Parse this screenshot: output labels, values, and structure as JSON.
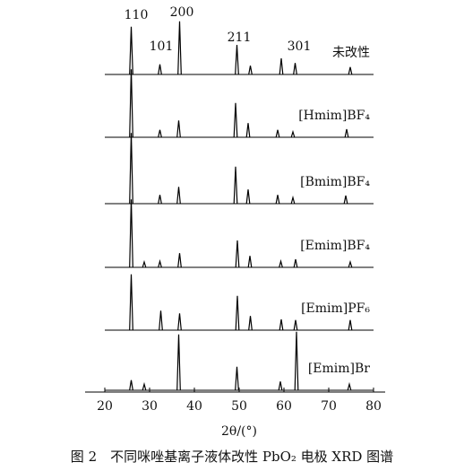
{
  "chart_data": {
    "type": "line",
    "xlabel": "2θ/(°)",
    "caption": "图 2　不同咪唑基离子液体改性 PbO₂ 电极 XRD 图谱",
    "xlim": [
      20,
      80
    ],
    "xticks": [
      20,
      30,
      40,
      50,
      60,
      70,
      80
    ],
    "annotations": [
      "110",
      "101",
      "200",
      "211",
      "301"
    ],
    "series": [
      {
        "name": "未改性",
        "color": "#000000",
        "x": [
          25.9,
          32.3,
          36.7,
          49.5,
          52.5,
          59.4,
          62.5,
          74.8
        ],
        "values": [
          71,
          15,
          79,
          44,
          13,
          24,
          17,
          11
        ]
      },
      {
        "name": "[Hmim]BF₄",
        "color": "#000000",
        "x": [
          25.9,
          32.3,
          36.5,
          49.2,
          52.0,
          58.6,
          62.0,
          74.0
        ],
        "values": [
          101,
          11,
          25,
          51,
          21,
          11,
          8,
          12
        ]
      },
      {
        "name": "[Bmim]BF₄",
        "color": "#000000",
        "x": [
          25.9,
          32.3,
          36.5,
          49.2,
          52.0,
          58.6,
          62.0,
          73.8
        ],
        "values": [
          105,
          13,
          25,
          55,
          21,
          13,
          9,
          12
        ]
      },
      {
        "name": "[Emim]BF₄",
        "color": "#000000",
        "x": [
          25.9,
          28.8,
          32.3,
          36.7,
          49.6,
          52.4,
          59.3,
          62.6,
          74.8
        ],
        "values": [
          101,
          8,
          9,
          21,
          40,
          17,
          9,
          12,
          8
        ]
      },
      {
        "name": "[Emim]PF₆",
        "color": "#000000",
        "x": [
          25.9,
          32.5,
          36.7,
          49.6,
          52.5,
          59.4,
          62.6,
          74.8
        ],
        "values": [
          83,
          29,
          25,
          51,
          21,
          16,
          15,
          15
        ]
      },
      {
        "name": "[Emim]Br",
        "color": "#000000",
        "x": [
          25.9,
          28.8,
          36.5,
          49.5,
          59.2,
          62.8,
          74.6
        ],
        "values": [
          15,
          9,
          83,
          35,
          13,
          87,
          9
        ]
      }
    ]
  }
}
